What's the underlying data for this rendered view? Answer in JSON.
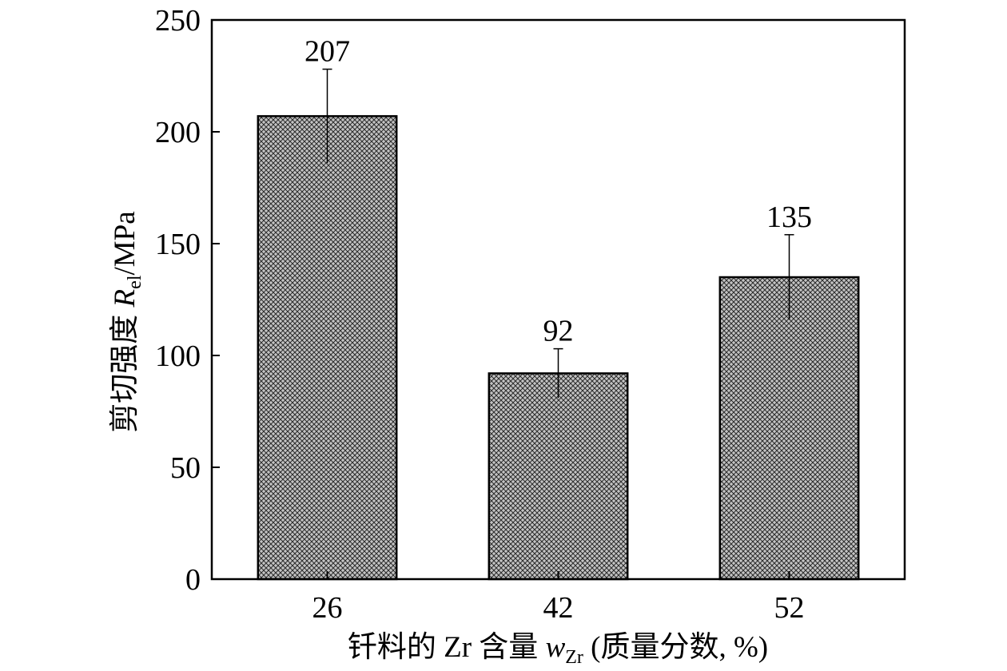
{
  "chart_data": {
    "type": "bar",
    "categories": [
      "26",
      "42",
      "52"
    ],
    "series": [
      {
        "values": [
          207,
          92,
          135
        ],
        "error_plus": [
          21,
          11,
          19
        ],
        "error_minus": [
          21,
          11,
          19
        ],
        "data_labels": [
          "207",
          "92",
          "135"
        ]
      }
    ],
    "ylim": [
      0,
      250
    ],
    "yticks": [
      0,
      50,
      100,
      150,
      200,
      250
    ],
    "ytick_labels": [
      "0",
      "50",
      "100",
      "150",
      "200",
      "250"
    ],
    "xlabel": {
      "prefix": "钎料的 Zr 含量 ",
      "symbol": "w",
      "subscript": "Zr",
      "suffix": " (质量分数, %)"
    },
    "ylabel": {
      "prefix": "剪切强度 ",
      "symbol": "R",
      "subscript": "el",
      "suffix": "/MPa"
    },
    "grid": false,
    "legend": "none",
    "bar_fill": "crosshatch",
    "colors": {
      "bar_fill": "#bdbdbd",
      "hatch": "#2a2a2a",
      "axis": "#000000",
      "background": "#ffffff"
    }
  }
}
